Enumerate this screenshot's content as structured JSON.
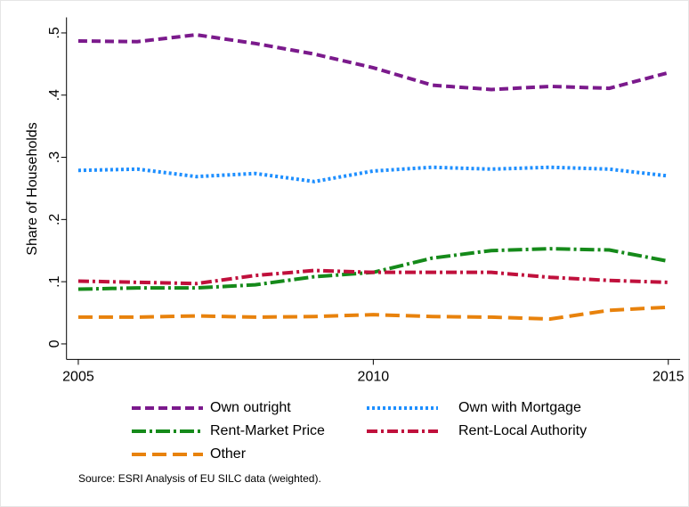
{
  "chart_data": {
    "type": "line",
    "y_label": "Share of Households",
    "source": "Source:  ESRI Analysis of EU SILC data (weighted).",
    "x": [
      2005,
      2006,
      2007,
      2008,
      2009,
      2010,
      2011,
      2012,
      2013,
      2014,
      2015
    ],
    "xlim": [
      2004.8,
      2015.2
    ],
    "xticks": [
      2005,
      2010,
      2015
    ],
    "ylim": [
      -0.025,
      0.525
    ],
    "yticks": [
      0,
      {
        "value": 0.1,
        "label": ".1"
      },
      {
        "value": 0.2,
        "label": ".2"
      },
      {
        "value": 0.3,
        "label": ".3"
      },
      {
        "value": 0.4,
        "label": ".4"
      },
      {
        "value": 0.5,
        "label": ".5"
      }
    ],
    "series": [
      {
        "name": "Own outright",
        "color": "#7b1a8c",
        "style": "dash",
        "values": [
          0.487,
          0.486,
          0.497,
          0.483,
          0.466,
          0.444,
          0.416,
          0.409,
          0.414,
          0.411,
          0.436
        ]
      },
      {
        "name": "Own with Mortgage",
        "color": "#1e8fff",
        "style": "dot",
        "values": [
          0.279,
          0.281,
          0.269,
          0.274,
          0.261,
          0.278,
          0.284,
          0.281,
          0.284,
          0.281,
          0.27
        ]
      },
      {
        "name": "Rent-Market Price",
        "color": "#158a1a",
        "style": "long-dash-dot",
        "values": [
          0.088,
          0.09,
          0.09,
          0.095,
          0.108,
          0.115,
          0.138,
          0.15,
          0.153,
          0.151,
          0.133
        ]
      },
      {
        "name": "Rent-Local Authority",
        "color": "#c0103c",
        "style": "dash-dot",
        "values": [
          0.101,
          0.099,
          0.097,
          0.11,
          0.118,
          0.115,
          0.115,
          0.115,
          0.107,
          0.102,
          0.099
        ]
      },
      {
        "name": "Other",
        "color": "#e8820c",
        "style": "long-dash",
        "values": [
          0.043,
          0.043,
          0.045,
          0.043,
          0.044,
          0.047,
          0.044,
          0.043,
          0.04,
          0.054,
          0.059
        ]
      }
    ]
  }
}
